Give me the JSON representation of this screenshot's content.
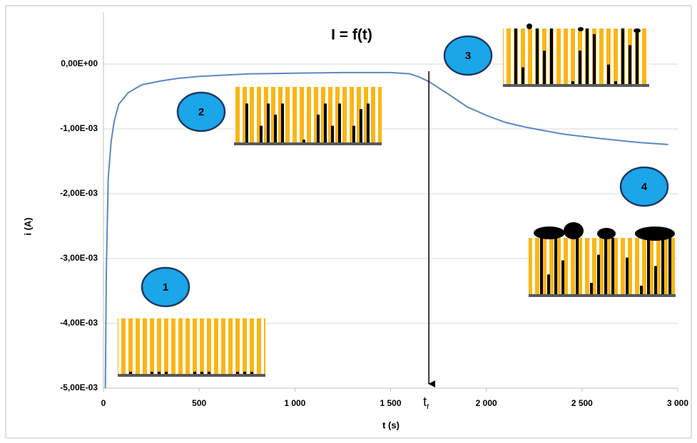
{
  "chart_data": {
    "type": "line",
    "title": "I = f(t)",
    "x_label": "t (s)",
    "y_label": "i (A)",
    "x": [
      10,
      15,
      25,
      40,
      56,
      80,
      130,
      200,
      300,
      390,
      500,
      765,
      1000,
      1250,
      1500,
      1600,
      1650,
      1700,
      1800,
      1900,
      2000,
      2100,
      2200,
      2400,
      2600,
      2800,
      2950
    ],
    "values": [
      -0.005,
      -0.0032,
      -0.00176,
      -0.0012,
      -0.00088,
      -0.00062,
      -0.00044,
      -0.00032,
      -0.00026,
      -0.00022,
      -0.00019,
      -0.00015,
      -0.00014,
      -0.00013,
      -0.00013,
      -0.00015,
      -0.0002,
      -0.00027,
      -0.00046,
      -0.00066,
      -0.00079,
      -0.0009,
      -0.00097,
      -0.00108,
      -0.00115,
      -0.00121,
      -0.00124
    ],
    "color": "#5b87c5",
    "xlim": [
      0,
      3000
    ],
    "ylim": [
      -0.005,
      0.0008
    ],
    "xticks": [
      0,
      500,
      {
        "value": 1000,
        "label": "1 000"
      },
      {
        "value": 1500,
        "label": "1 500"
      },
      {
        "value": 2000,
        "label": "2 000"
      },
      {
        "value": 2500,
        "label": "2 500"
      },
      {
        "value": 3000,
        "label": "3 000"
      }
    ],
    "yticks": [
      {
        "value": 0,
        "label": "0,00E+00"
      },
      {
        "value": -0.001,
        "label": "-1,00E-03"
      },
      {
        "value": -0.002,
        "label": "-2,00E-03"
      },
      {
        "value": -0.003,
        "label": "-3,00E-03"
      },
      {
        "value": -0.004,
        "label": "-4,00E-03"
      },
      {
        "value": -0.005,
        "label": "-5,00E-03"
      }
    ],
    "grid": true,
    "marker_x": 1700,
    "marker_label": "t",
    "marker_subscript": "r",
    "annotations": [
      "1",
      "2",
      "3",
      "4"
    ]
  }
}
